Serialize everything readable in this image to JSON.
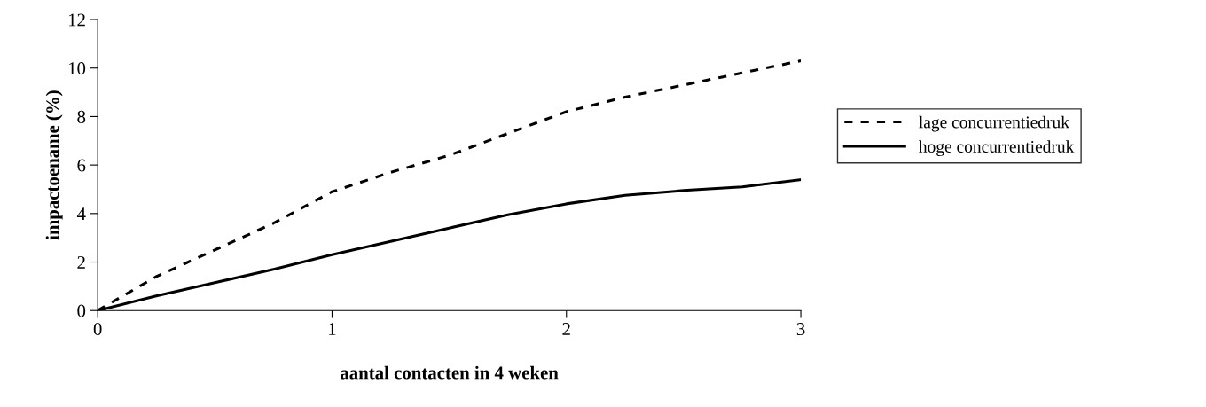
{
  "chart_data": {
    "type": "line",
    "xlabel": "aantal contacten in 4 weken",
    "ylabel": "impactoename (%)",
    "x": [
      0,
      0.25,
      0.5,
      0.75,
      1,
      1.25,
      1.5,
      1.75,
      2,
      2.25,
      2.5,
      2.75,
      3
    ],
    "series": [
      {
        "name": "lage concurrentiedruk",
        "color": "#000000",
        "line_style": "dashed",
        "values": [
          0,
          1.4,
          2.5,
          3.6,
          4.9,
          5.7,
          6.4,
          7.3,
          8.2,
          8.8,
          9.3,
          9.8,
          10.3
        ]
      },
      {
        "name": "hoge concurrentiedruk",
        "color": "#000000",
        "line_style": "solid",
        "values": [
          0,
          0.6,
          1.15,
          1.7,
          2.3,
          2.85,
          3.4,
          3.95,
          4.4,
          4.75,
          4.95,
          5.1,
          5.4
        ]
      }
    ],
    "xlim": [
      0,
      3
    ],
    "xticks": [
      0,
      1,
      2,
      3
    ],
    "ylim": [
      0,
      12
    ],
    "yticks": [
      0,
      2,
      4,
      6,
      8,
      10,
      12
    ],
    "grid": false,
    "legend": "right",
    "marker": "none"
  }
}
